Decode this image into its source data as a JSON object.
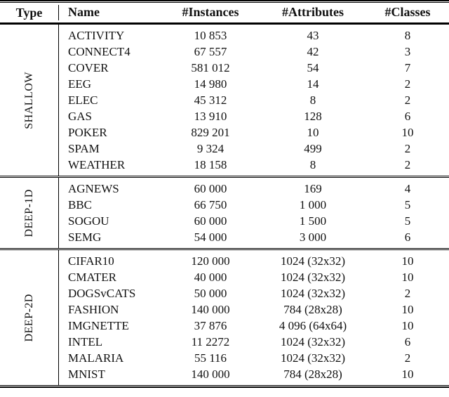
{
  "table": {
    "columns": [
      "Type",
      "Name",
      "#Instances",
      "#Attributes",
      "#Classes"
    ],
    "groups": [
      {
        "type": "SHALLOW",
        "rows": [
          {
            "name": "ACTIVITY",
            "instances": "10 853",
            "attributes": "43",
            "classes": "8"
          },
          {
            "name": "CONNECT4",
            "instances": "67 557",
            "attributes": "42",
            "classes": "3"
          },
          {
            "name": "COVER",
            "instances": "581 012",
            "attributes": "54",
            "classes": "7"
          },
          {
            "name": "EEG",
            "instances": "14 980",
            "attributes": "14",
            "classes": "2"
          },
          {
            "name": "ELEC",
            "instances": "45 312",
            "attributes": "8",
            "classes": "2"
          },
          {
            "name": "GAS",
            "instances": "13 910",
            "attributes": "128",
            "classes": "6"
          },
          {
            "name": "POKER",
            "instances": "829 201",
            "attributes": "10",
            "classes": "10"
          },
          {
            "name": "SPAM",
            "instances": "9 324",
            "attributes": "499",
            "classes": "2"
          },
          {
            "name": "WEATHER",
            "instances": "18 158",
            "attributes": "8",
            "classes": "2"
          }
        ]
      },
      {
        "type": "DEEP-1D",
        "rows": [
          {
            "name": "AGNEWS",
            "instances": "60 000",
            "attributes": "169",
            "classes": "4"
          },
          {
            "name": "BBC",
            "instances": "66 750",
            "attributes": "1 000",
            "classes": "5"
          },
          {
            "name": "SOGOU",
            "instances": "60 000",
            "attributes": "1 500",
            "classes": "5"
          },
          {
            "name": "SEMG",
            "instances": "54 000",
            "attributes": "3 000",
            "classes": "6"
          }
        ]
      },
      {
        "type": "DEEP-2D",
        "rows": [
          {
            "name": "CIFAR10",
            "instances": "120 000",
            "attributes": "1024 (32x32)",
            "classes": "10"
          },
          {
            "name": "CMATER",
            "instances": "40 000",
            "attributes": "1024 (32x32)",
            "classes": "10"
          },
          {
            "name": "DOGSvCATS",
            "instances": "50 000",
            "attributes": "1024 (32x32)",
            "classes": "2"
          },
          {
            "name": "FASHION",
            "instances": "140 000",
            "attributes": "784 (28x28)",
            "classes": "10"
          },
          {
            "name": "IMGNETTE",
            "instances": "37 876",
            "attributes": "4 096 (64x64)",
            "classes": "10"
          },
          {
            "name": "INTEL",
            "instances": "11 2272",
            "attributes": "1024 (32x32)",
            "classes": "6"
          },
          {
            "name": "MALARIA",
            "instances": "55 116",
            "attributes": "1024 (32x32)",
            "classes": "2"
          },
          {
            "name": "MNIST",
            "instances": "140 000",
            "attributes": "784 (28x28)",
            "classes": "10"
          }
        ]
      }
    ]
  }
}
